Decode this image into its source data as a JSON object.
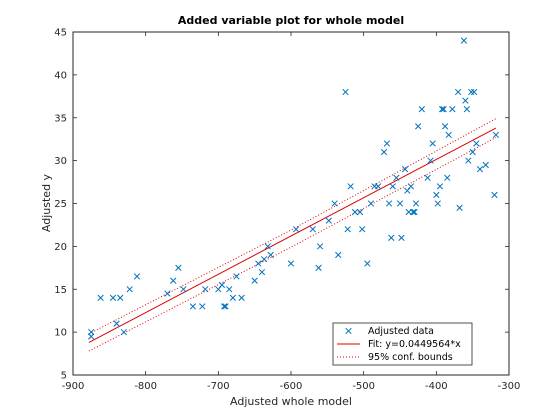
{
  "chart_data": {
    "type": "scatter",
    "title": "Added variable plot for whole model",
    "xlabel": "Adjusted whole model",
    "ylabel": "Adjusted y",
    "xlim": [
      -900,
      -300
    ],
    "ylim": [
      5,
      45
    ],
    "xticks": [
      -900,
      -800,
      -700,
      -600,
      -500,
      -400,
      -300
    ],
    "yticks": [
      5,
      10,
      15,
      20,
      25,
      30,
      35,
      40,
      45
    ],
    "grid": false,
    "legend_position": "bottom-right",
    "colors": {
      "data": "#0072BD",
      "fit": "#E00000",
      "bounds": "#E00000"
    },
    "series": [
      {
        "name": "Adjusted data",
        "kind": "scatter",
        "marker": "x",
        "points": [
          [
            -875,
            10
          ],
          [
            -875,
            9.5
          ],
          [
            -862,
            14
          ],
          [
            -845,
            14
          ],
          [
            -840,
            11
          ],
          [
            -835,
            14
          ],
          [
            -830,
            10
          ],
          [
            -822,
            15
          ],
          [
            -812,
            16.5
          ],
          [
            -770,
            14.5
          ],
          [
            -762,
            16
          ],
          [
            -755,
            17.5
          ],
          [
            -748,
            15
          ],
          [
            -735,
            13
          ],
          [
            -722,
            13
          ],
          [
            -718,
            15
          ],
          [
            -700,
            15
          ],
          [
            -695,
            15.5
          ],
          [
            -692,
            13
          ],
          [
            -690,
            13
          ],
          [
            -685,
            15
          ],
          [
            -680,
            14
          ],
          [
            -675,
            16.5
          ],
          [
            -668,
            14
          ],
          [
            -650,
            16
          ],
          [
            -645,
            18
          ],
          [
            -640,
            17
          ],
          [
            -637,
            18.5
          ],
          [
            -632,
            20
          ],
          [
            -628,
            19
          ],
          [
            -600,
            18
          ],
          [
            -593,
            22
          ],
          [
            -570,
            22
          ],
          [
            -562,
            17.5
          ],
          [
            -560,
            20
          ],
          [
            -548,
            23
          ],
          [
            -540,
            25
          ],
          [
            -535,
            19
          ],
          [
            -525,
            38
          ],
          [
            -522,
            22
          ],
          [
            -518,
            27
          ],
          [
            -512,
            24
          ],
          [
            -505,
            24
          ],
          [
            -502,
            22
          ],
          [
            -495,
            18
          ],
          [
            -490,
            25
          ],
          [
            -485,
            27
          ],
          [
            -480,
            27
          ],
          [
            -472,
            31
          ],
          [
            -468,
            32
          ],
          [
            -465,
            25
          ],
          [
            -462,
            21
          ],
          [
            -460,
            27
          ],
          [
            -455,
            28
          ],
          [
            -450,
            25
          ],
          [
            -448,
            21
          ],
          [
            -443,
            29
          ],
          [
            -440,
            26.5
          ],
          [
            -438,
            24
          ],
          [
            -435,
            27
          ],
          [
            -432,
            24
          ],
          [
            -430,
            24
          ],
          [
            -428,
            25
          ],
          [
            -425,
            34
          ],
          [
            -420,
            36
          ],
          [
            -412,
            28
          ],
          [
            -408,
            30
          ],
          [
            -405,
            32
          ],
          [
            -400,
            26
          ],
          [
            -398,
            25
          ],
          [
            -395,
            27
          ],
          [
            -392,
            36
          ],
          [
            -390,
            36
          ],
          [
            -388,
            34
          ],
          [
            -385,
            28
          ],
          [
            -383,
            33
          ],
          [
            -378,
            36
          ],
          [
            -370,
            38
          ],
          [
            -368,
            24.5
          ],
          [
            -362,
            44
          ],
          [
            -360,
            37
          ],
          [
            -358,
            36
          ],
          [
            -356,
            30
          ],
          [
            -352,
            38
          ],
          [
            -350,
            31
          ],
          [
            -348,
            38
          ],
          [
            -345,
            32
          ],
          [
            -340,
            29
          ],
          [
            -332,
            29.5
          ],
          [
            -320,
            26
          ],
          [
            -318,
            33
          ]
        ]
      },
      {
        "name": "Fit: y=0.0449564*x",
        "kind": "line",
        "style": "solid",
        "points": [
          [
            -878,
            8.8
          ],
          [
            -318,
            33.8
          ]
        ]
      },
      {
        "name": "95% conf. bounds",
        "kind": "bounds",
        "style": "dotted",
        "upper": [
          [
            -878,
            9.8
          ],
          [
            -600,
            21.9
          ],
          [
            -318,
            34.9
          ]
        ],
        "lower": [
          [
            -878,
            7.8
          ],
          [
            -600,
            19.9
          ],
          [
            -318,
            32.7
          ]
        ]
      }
    ]
  }
}
